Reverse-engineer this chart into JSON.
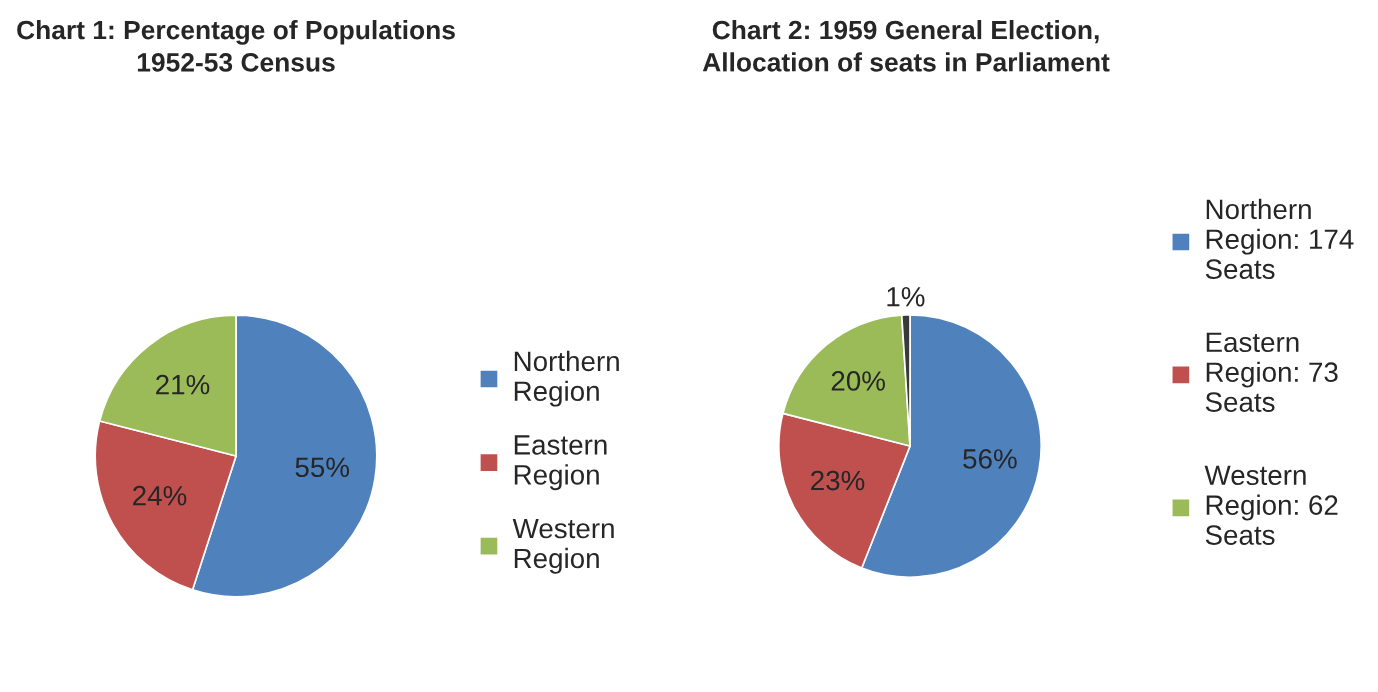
{
  "chart_data": [
    {
      "type": "pie",
      "title": "Chart 1: Percentage of Populations 1952-53 Census",
      "categories": [
        "Northern Region",
        "Eastern Region",
        "Western Region"
      ],
      "values": [
        55,
        24,
        21
      ],
      "value_labels": [
        "55%",
        "24%",
        "21%"
      ],
      "colors": [
        "#4f81bd",
        "#c0504d",
        "#9bbb59"
      ],
      "legend": "right"
    },
    {
      "type": "pie",
      "title": "Chart 2: 1959 General Election, Allocation of seats in Parliament",
      "categories": [
        "Northern Region: 174 Seats",
        "Eastern Region: 73 Seats",
        "Western Region: 62 Seats",
        null
      ],
      "values": [
        56,
        23,
        20,
        1
      ],
      "value_labels": [
        "56%",
        "23%",
        "20%",
        "1%"
      ],
      "colors": [
        "#4f81bd",
        "#c0504d",
        "#9bbb59",
        "#3a3a3a"
      ],
      "legend": "right"
    }
  ]
}
